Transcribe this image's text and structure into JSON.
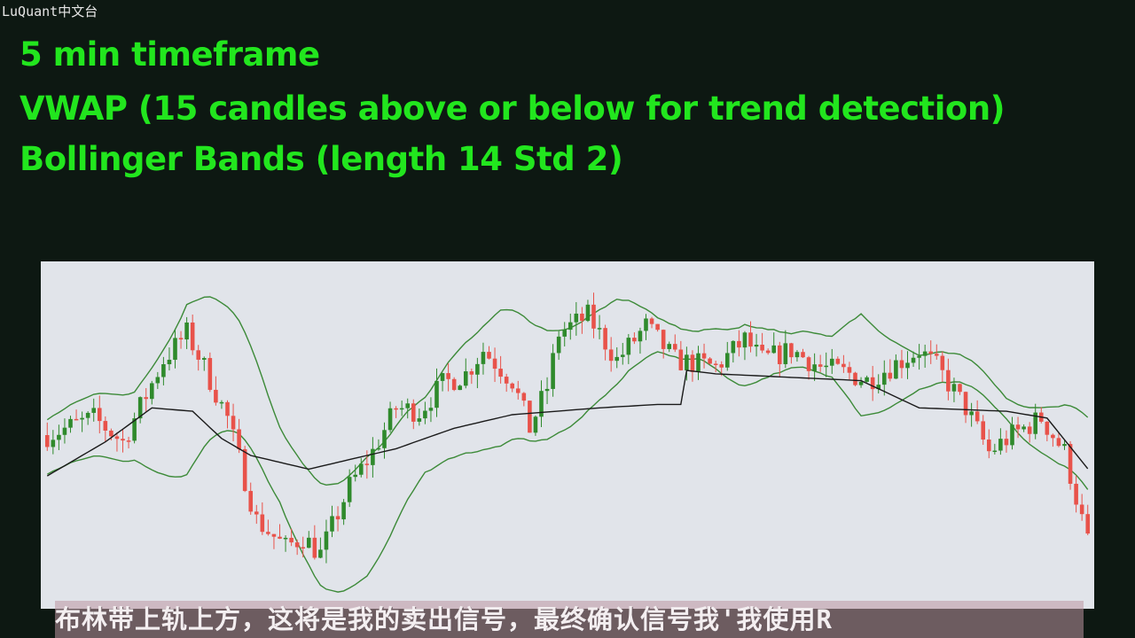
{
  "watermark": "LuQuant中文台",
  "title_lines": [
    "5 min timeframe",
    "VWAP (15 candles above or below for trend detection)",
    "Bollinger Bands (length 14 Std 2)"
  ],
  "subtitle": "布林带上轨上方，这将是我的卖出信号，最终确认信号我'我使用R",
  "colors": {
    "background": "#0d1812",
    "title": "#22e61e",
    "panel": "#e1e4ea",
    "bull_candle": "#2f8a2c",
    "bear_candle": "#e8524a",
    "bands": "#3c8a38",
    "vwap": "#1a1a1a"
  },
  "chart_data": {
    "type": "candlestick",
    "title": "",
    "xlabel": "",
    "ylabel": "",
    "grid": false,
    "ylim": [
      0,
      100
    ],
    "n_candles": 180,
    "price_path": [
      [
        0,
        50
      ],
      [
        8,
        55
      ],
      [
        13,
        48
      ],
      [
        20,
        72
      ],
      [
        24,
        80
      ],
      [
        27,
        70
      ],
      [
        31,
        55
      ],
      [
        36,
        25
      ],
      [
        41,
        17
      ],
      [
        44,
        20
      ],
      [
        47,
        15
      ],
      [
        52,
        35
      ],
      [
        56,
        45
      ],
      [
        60,
        58
      ],
      [
        64,
        57
      ],
      [
        68,
        65
      ],
      [
        72,
        68
      ],
      [
        75,
        75
      ],
      [
        80,
        66
      ],
      [
        83,
        52
      ],
      [
        86,
        64
      ],
      [
        88,
        80
      ],
      [
        93,
        85
      ],
      [
        98,
        72
      ],
      [
        103,
        82
      ],
      [
        108,
        72
      ],
      [
        115,
        70
      ],
      [
        120,
        78
      ],
      [
        123,
        72
      ],
      [
        128,
        75
      ],
      [
        133,
        70
      ],
      [
        138,
        68
      ],
      [
        141,
        66
      ],
      [
        145,
        70
      ],
      [
        150,
        75
      ],
      [
        153,
        70
      ],
      [
        158,
        58
      ],
      [
        162,
        45
      ],
      [
        166,
        50
      ],
      [
        171,
        55
      ],
      [
        175,
        45
      ],
      [
        178,
        25
      ],
      [
        180,
        12
      ]
    ],
    "vwap_path": [
      [
        0,
        38
      ],
      [
        10,
        48
      ],
      [
        18,
        58
      ],
      [
        25,
        57
      ],
      [
        30,
        49
      ],
      [
        35,
        44
      ],
      [
        45,
        40
      ],
      [
        60,
        46
      ],
      [
        70,
        52
      ],
      [
        80,
        56
      ],
      [
        95,
        58
      ],
      [
        105,
        59
      ],
      [
        109,
        59
      ],
      [
        110,
        69
      ],
      [
        115,
        68
      ],
      [
        140,
        66
      ],
      [
        145,
        62
      ],
      [
        150,
        58
      ],
      [
        165,
        57
      ],
      [
        172,
        55
      ],
      [
        180,
        38
      ]
    ],
    "band_width_path": [
      [
        0,
        16
      ],
      [
        15,
        20
      ],
      [
        24,
        50
      ],
      [
        30,
        38
      ],
      [
        40,
        22
      ],
      [
        47,
        30
      ],
      [
        55,
        35
      ],
      [
        65,
        22
      ],
      [
        70,
        30
      ],
      [
        78,
        40
      ],
      [
        88,
        30
      ],
      [
        98,
        25
      ],
      [
        105,
        10
      ],
      [
        112,
        8
      ],
      [
        120,
        18
      ],
      [
        128,
        10
      ],
      [
        135,
        12
      ],
      [
        140,
        30
      ],
      [
        150,
        10
      ],
      [
        165,
        6
      ],
      [
        175,
        18
      ],
      [
        180,
        22
      ]
    ]
  }
}
